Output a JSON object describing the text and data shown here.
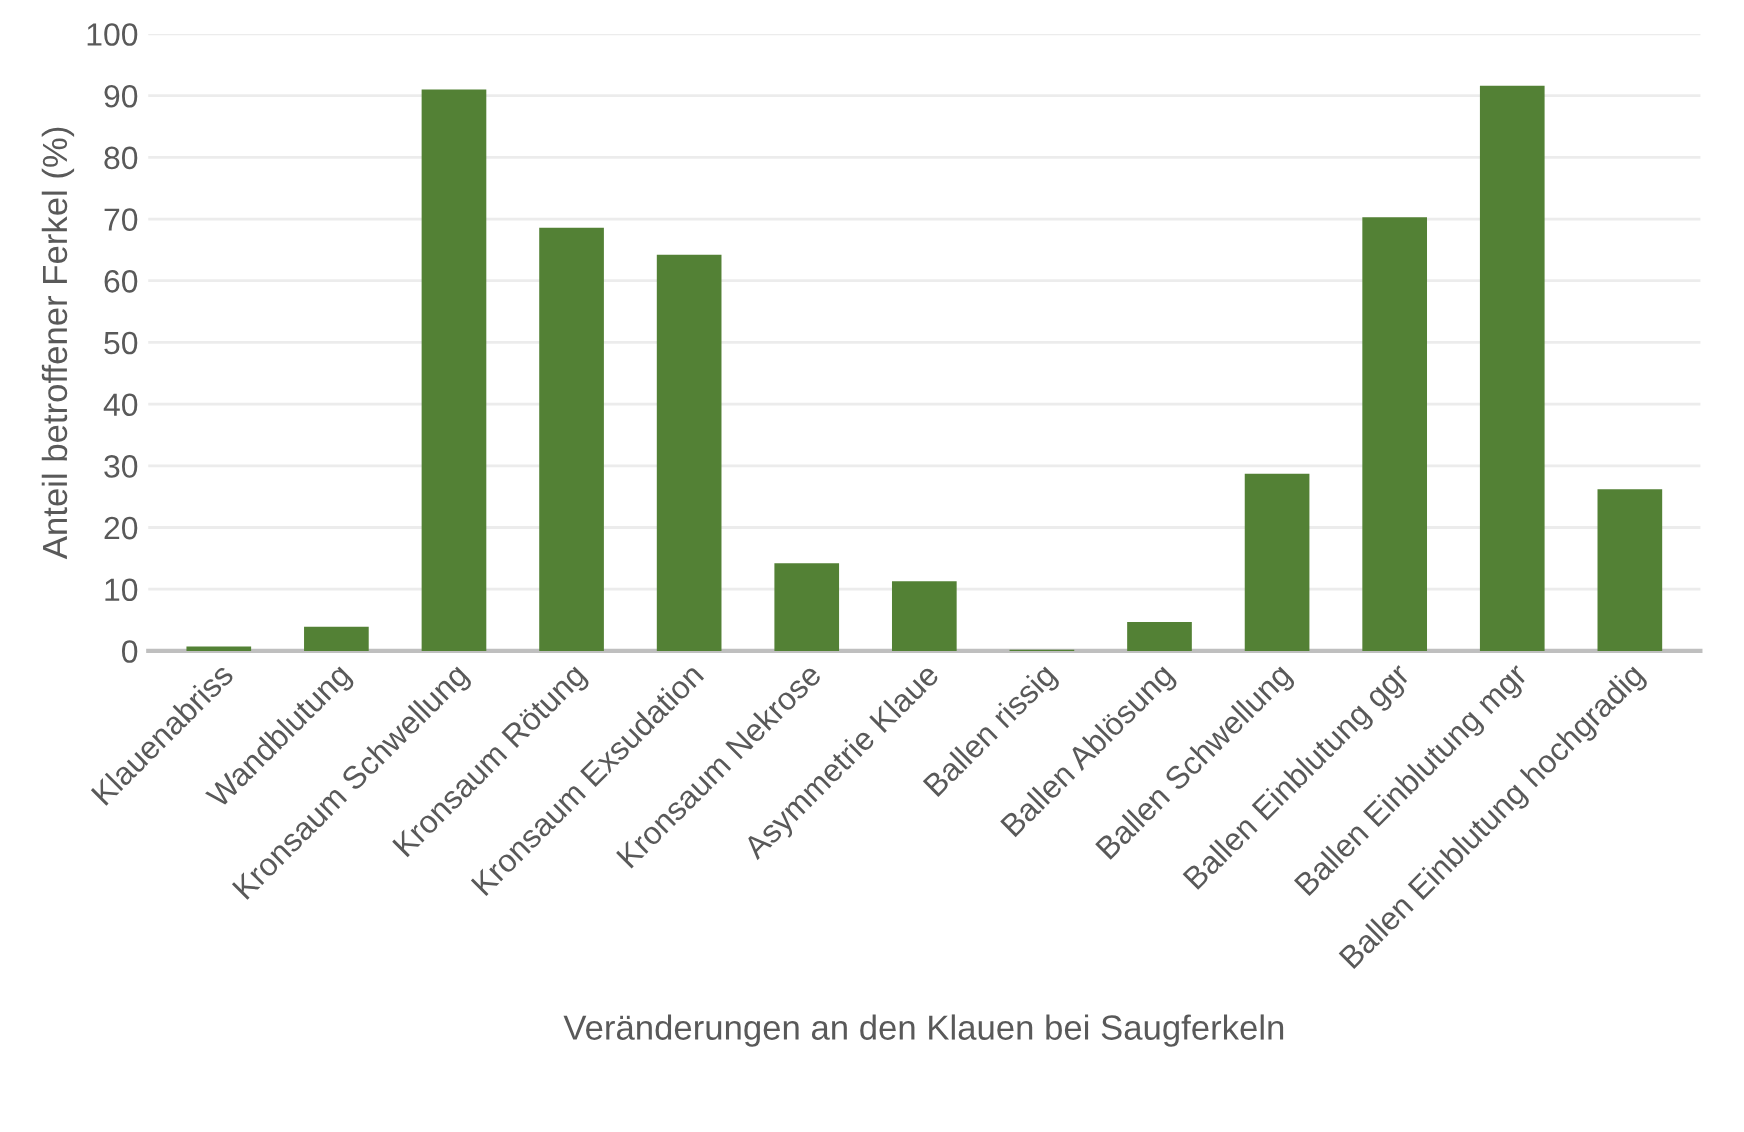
{
  "chart_data": {
    "type": "bar",
    "xlabel": "Veränderungen an den Klauen bei Saugferkeln",
    "ylabel": "Anteil betroffener Ferkel (%)",
    "categories": [
      "Klauenabriss",
      "Wandblutung",
      "Kronsaum Schwellung",
      "Kronsaum Rötung",
      "Kronsaum Exsudation",
      "Kronsaum Nekrose",
      "Asymmetrie Klaue",
      "Ballen rissig",
      "Ballen Ablösung",
      "Ballen Schwellung",
      "Ballen Einblutung ggr",
      "Ballen Einblutung mgr",
      "Ballen Einblutung hochgradig"
    ],
    "values": [
      0.7,
      3.9,
      91.0,
      68.6,
      64.2,
      14.2,
      11.3,
      0.2,
      4.7,
      28.7,
      70.3,
      91.6,
      26.2
    ],
    "color": "#538135",
    "ylim": [
      0,
      100
    ],
    "yticks": [
      0,
      10,
      20,
      30,
      40,
      50,
      60,
      70,
      80,
      90,
      100
    ],
    "grid": "y"
  }
}
